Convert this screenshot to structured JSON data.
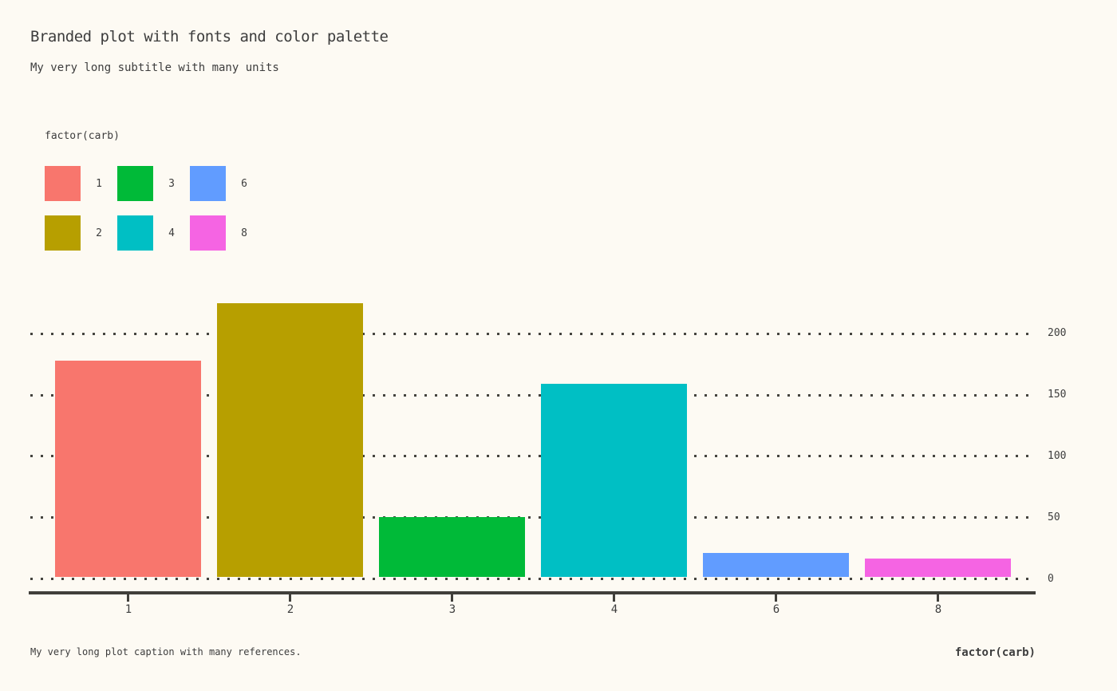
{
  "title": "Branded plot with fonts and color palette",
  "subtitle": "My very long subtitle with many units",
  "caption": "My very long plot caption with many references.",
  "x_axis_title": "factor(carb)",
  "legend": {
    "title": "factor(carb)",
    "items": [
      {
        "label": "1",
        "color": "#F8766D"
      },
      {
        "label": "2",
        "color": "#B79F00"
      },
      {
        "label": "3",
        "color": "#00BA38"
      },
      {
        "label": "4",
        "color": "#00BFC4"
      },
      {
        "label": "6",
        "color": "#619CFF"
      },
      {
        "label": "8",
        "color": "#F564E3"
      }
    ]
  },
  "chart_data": {
    "type": "bar",
    "title": "Branded plot with fonts and color palette",
    "subtitle": "My very long subtitle with many units",
    "caption": "My very long plot caption with many references.",
    "xlabel": "factor(carb)",
    "ylabel": "",
    "categories": [
      "1",
      "2",
      "3",
      "4",
      "6",
      "8"
    ],
    "values": [
      177.4,
      224.0,
      48.9,
      157.9,
      19.7,
      15.0
    ],
    "colors": [
      "#F8766D",
      "#B79F00",
      "#00BA38",
      "#00BFC4",
      "#619CFF",
      "#F564E3"
    ],
    "y_ticks": [
      0,
      50,
      100,
      150,
      200
    ],
    "ylim": [
      0,
      237
    ],
    "y_axis_side": "right",
    "grid": "horizontal-dotted",
    "legend_title": "factor(carb)",
    "legend_position": "top-left",
    "bar_gap_fraction": 0.1
  },
  "colors": {
    "background": "#FDFAF3",
    "text": "#3d3d3d",
    "axis": "#403f3b",
    "gridline": "#45443f"
  }
}
